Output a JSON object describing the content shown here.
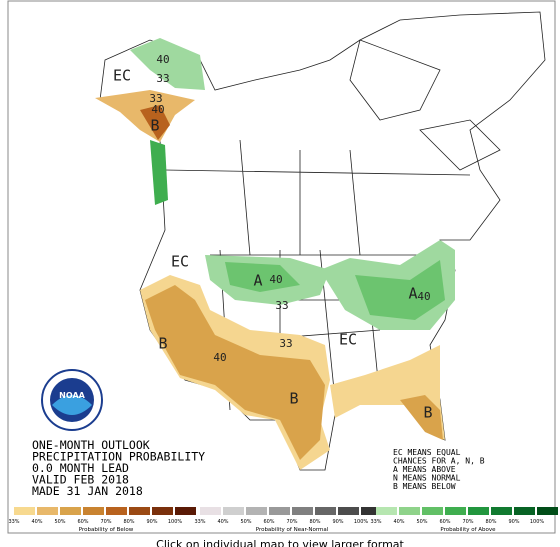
{
  "title_lines": [
    "ONE-MONTH OUTLOOK",
    "PRECIPITATION PROBABILITY",
    "0.0 MONTH LEAD",
    "VALID FEB 2018",
    "MADE 31 JAN 2018"
  ],
  "key_lines": [
    "EC MEANS EQUAL",
    "CHANCES FOR A, N, B",
    "A MEANS ABOVE",
    "N MEANS NORMAL",
    "B MEANS BELOW"
  ],
  "map_labels": [
    "EC",
    "40",
    "33",
    "33",
    "40",
    "B",
    "EC",
    "A",
    "40",
    "33",
    "33",
    "B",
    "40",
    "B",
    "EC",
    "A",
    "40",
    "B"
  ],
  "scales": [
    {
      "ticks": [
        "33%",
        "40%",
        "50%",
        "60%",
        "70%",
        "80%",
        "90%",
        "100%"
      ],
      "caption": "Probability of Below"
    },
    {
      "ticks": [
        "33%",
        "40%",
        "50%",
        "60%",
        "70%",
        "80%",
        "90%",
        "100%"
      ],
      "caption": "Probability of Near-Normal"
    },
    {
      "ticks": [
        "33%",
        "40%",
        "50%",
        "60%",
        "70%",
        "80%",
        "90%",
        "100%"
      ],
      "caption": "Probability of Above"
    }
  ],
  "footer": "Click on individual map to view larger format"
}
